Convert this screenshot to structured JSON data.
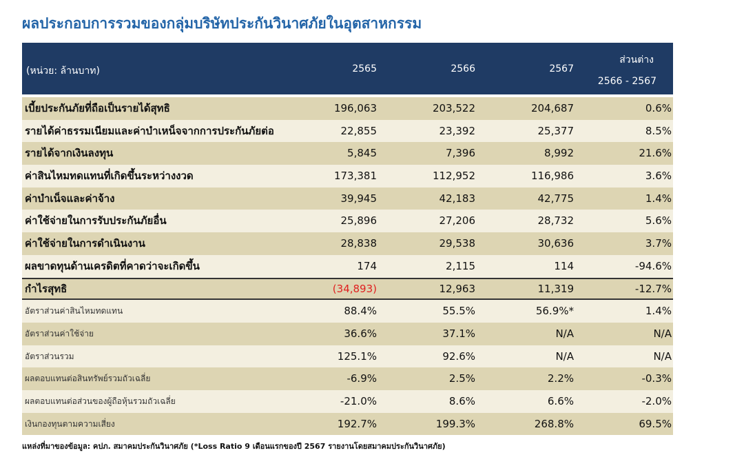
{
  "title": "ผลประกอบการรวมของกลุ่มบริษัทประกันวินาศภัยในอุตสาหกรรม",
  "table": {
    "header": [
      "(หน่วย: ล้านบาท)",
      "2565",
      "2566",
      "2567",
      "ส่วนต่าง",
      "2566 - 2567"
    ],
    "rows": [
      [
        "เบี้ยประกันภัยที่ถือเป็นรายได้สุทธิ",
        "196,063",
        "203,522",
        "204,687",
        "0.6%"
      ],
      [
        "รายได้ค่าธรรมเนียมและค่าบำเหน็จจากการประกันภัยต่อ",
        "22,855",
        "23,392",
        "25,377",
        "8.5%"
      ],
      [
        "รายได้จากเงินลงทุน",
        "5,845",
        "7,396",
        "8,992",
        "21.6%"
      ],
      [
        "ค่าสินไหมทดแทนที่เกิดขึ้นระหว่างงวด",
        "173,381",
        "112,952",
        "116,986",
        "3.6%"
      ],
      [
        "ค่าบำเน็จและค่าจ้าง",
        "39,945",
        "42,183",
        "42,775",
        "1.4%"
      ],
      [
        "ค่าใช้จ่ายในการรับประกันภัยอื่น",
        "25,896",
        "27,206",
        "28,732",
        "5.6%"
      ],
      [
        "ค่าใช้จ่ายในการดำเนินงาน",
        "28,838",
        "29,538",
        "30,636",
        "3.7%"
      ],
      [
        "ผลขาดทุนด้านเครดิตที่คาดว่าจะเกิดขึ้น",
        "174",
        "2,115",
        "114",
        "-94.6%"
      ],
      [
        "กำไรสุทธิ",
        "(34,893)",
        "12,963",
        "11,319",
        "-12.7%"
      ],
      [
        "อัตราส่วนค่าสินไหมทดแทน",
        "88.4%",
        "55.5%",
        "56.9%*",
        "1.4%"
      ],
      [
        "อัตราส่วนค่าใช้จ่าย",
        "36.6%",
        "37.1%",
        "N/A",
        "N/A"
      ],
      [
        "อัตราส่วนรวม",
        "125.1%",
        "92.6%",
        "N/A",
        "N/A"
      ],
      [
        "ผลตอบแทนต่อสินทรัพย์รวมถัวเฉลี่ย",
        "-6.9%",
        "2.5%",
        "2.2%",
        "-0.3%"
      ],
      [
        "ผลตอบแทนต่อส่วนของผู้ถือหุ้นรวมถัวเฉลี่ย",
        "-21.0%",
        "8.6%",
        "6.6%",
        "-2.0%"
      ],
      [
        "เงินกองทุนตามความเสี่ยง",
        "192.7%",
        "199.3%",
        "268.8%",
        "69.5%"
      ]
    ]
  },
  "footnote": "แหล่งที่มาของข้อมูล: คปภ. สมาคมประกันวินาศภัย (*Loss Ratio 9 เดือนแรกของปี 2567 รายงานโดยสมาคมประกันวินาศภัย)"
}
